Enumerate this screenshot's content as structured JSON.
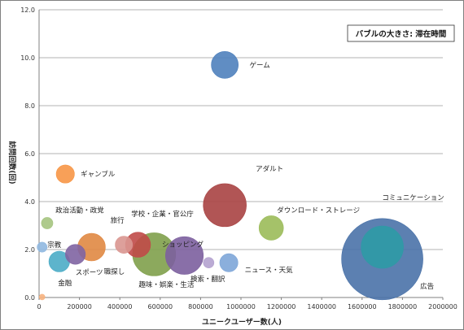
{
  "chart_data": {
    "type": "bubble",
    "xlabel": "ユニークユーザー数(人)",
    "ylabel": "訪問回数(回)",
    "legend_note": "バブルの大きさ: 滞在時間",
    "xlim": [
      0,
      2000000
    ],
    "ylim": [
      0,
      12
    ],
    "xticks": [
      0,
      200000,
      400000,
      600000,
      800000,
      1000000,
      1200000,
      1400000,
      1600000,
      1800000,
      2000000
    ],
    "yticks": [
      "0.0",
      "2.0",
      "4.0",
      "6.0",
      "8.0",
      "10.0",
      "12.0"
    ],
    "grid": true,
    "points": [
      {
        "name": "広告",
        "x": 1700000,
        "y": 1.6,
        "size": 1.0,
        "color": "#4a72a8"
      },
      {
        "name": "コミュニケーション",
        "x": 1700000,
        "y": 2.1,
        "size": 0.27,
        "color": "#2e9aa6"
      },
      {
        "name": "趣味・娯楽・生活",
        "x": 570000,
        "y": 1.8,
        "size": 0.28,
        "color": "#80a04b"
      },
      {
        "name": "ショッピング",
        "x": 720000,
        "y": 1.75,
        "size": 0.215,
        "color": "#7c5f9e"
      },
      {
        "name": "アダルト",
        "x": 920000,
        "y": 3.85,
        "size": 0.28,
        "color": "#a84343"
      },
      {
        "name": "学校・企業・官公庁",
        "x": 490000,
        "y": 2.2,
        "size": 0.095,
        "color": "#c04a48"
      },
      {
        "name": "旅行",
        "x": 420000,
        "y": 2.2,
        "size": 0.045,
        "color": "#d99690"
      },
      {
        "name": "職探し",
        "x": 260000,
        "y": 2.1,
        "size": 0.115,
        "color": "#e08843"
      },
      {
        "name": "スポーツ",
        "x": 180000,
        "y": 1.8,
        "size": 0.06,
        "color": "#8064a2"
      },
      {
        "name": "金融",
        "x": 100000,
        "y": 1.5,
        "size": 0.065,
        "color": "#4bacc6"
      },
      {
        "name": "宗教",
        "x": 15000,
        "y": 2.1,
        "size": 0.015,
        "color": "#90b8e0"
      },
      {
        "name": "政治活動・政党",
        "x": 40000,
        "y": 3.1,
        "size": 0.02,
        "color": "#a5c47f"
      },
      {
        "name": "ギャンブル",
        "x": 130000,
        "y": 5.15,
        "size": 0.05,
        "color": "#f79646"
      },
      {
        "name": "ゲーム",
        "x": 920000,
        "y": 9.7,
        "size": 0.11,
        "color": "#4f81bd"
      },
      {
        "name": "ダウンロード・ストレージ",
        "x": 1150000,
        "y": 2.9,
        "size": 0.09,
        "color": "#9bbb59"
      },
      {
        "name": "ニュース・天気",
        "x": 940000,
        "y": 1.45,
        "size": 0.05,
        "color": "#7ea6d8"
      },
      {
        "name": "検索・翻訳",
        "x": 840000,
        "y": 1.45,
        "size": 0.017,
        "color": "#b4a2cf"
      },
      {
        "name": "",
        "x": 15000,
        "y": 0.02,
        "size": 0.005,
        "color": "#f7b37f"
      }
    ]
  }
}
